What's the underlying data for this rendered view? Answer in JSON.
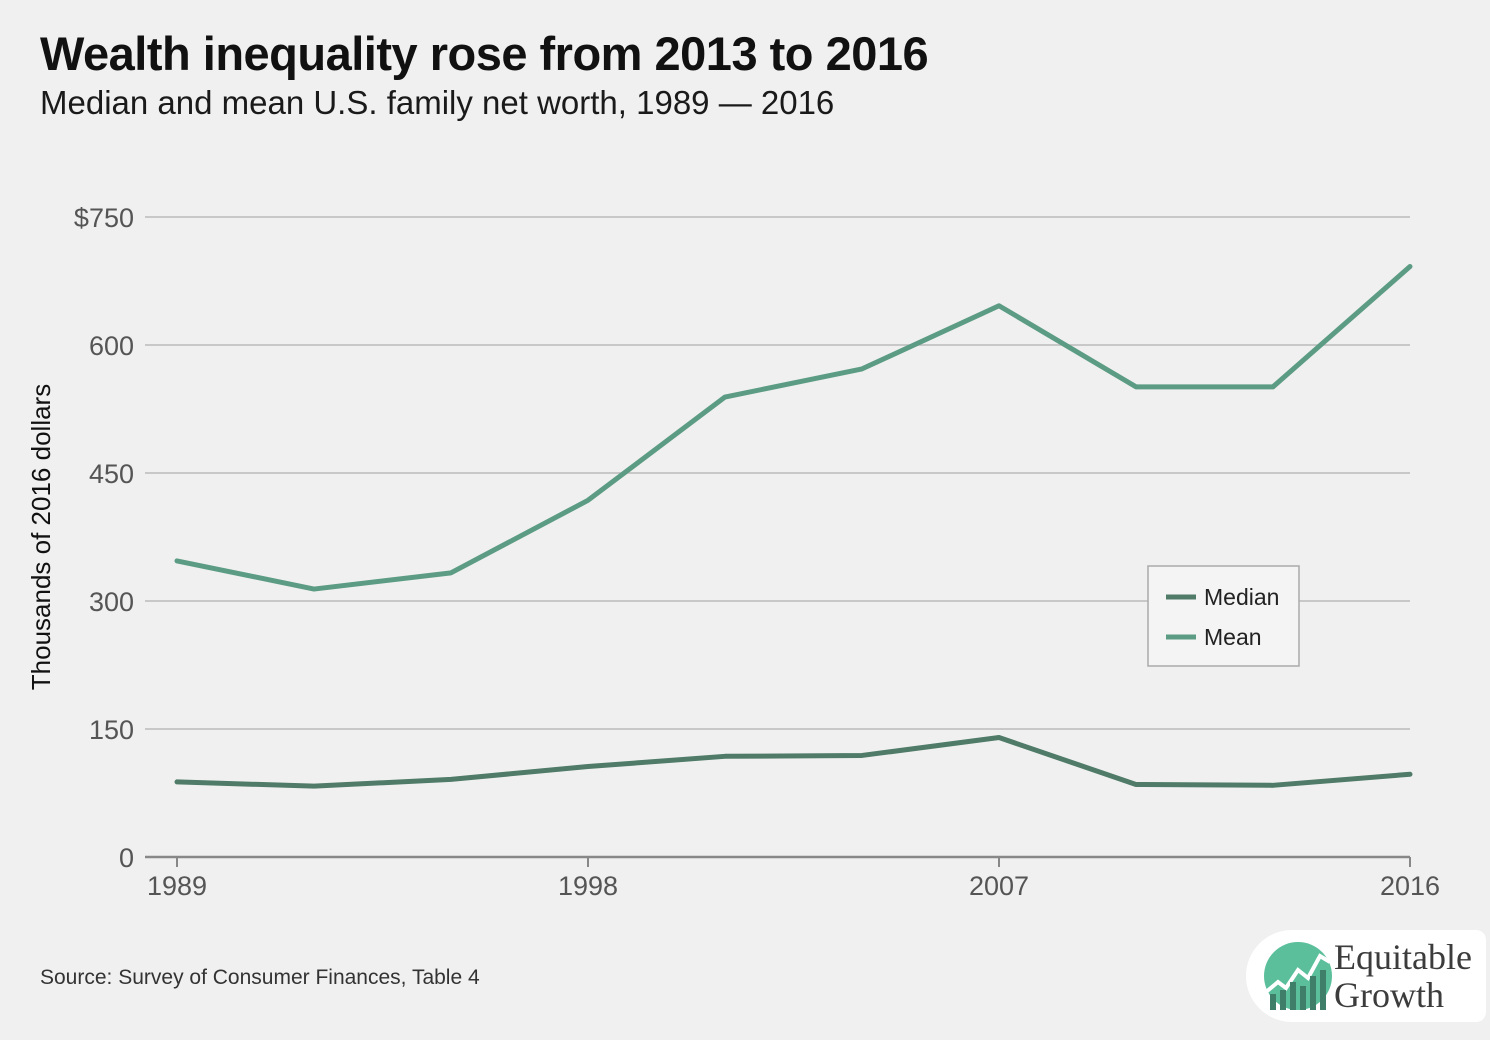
{
  "header": {
    "title": "Wealth inequality rose from 2013 to 2016",
    "subtitle": "Median and mean U.S. family net worth, 1989 — 2016"
  },
  "footer": {
    "source": "Source: Survey of Consumer Finances, Table 4"
  },
  "logo": {
    "line1": "Equitable",
    "line2": "Growth"
  },
  "colors": {
    "median": "#4f7b68",
    "mean": "#5c9c84",
    "grid": "#bbbbbb",
    "axis": "#888888",
    "logo_green": "#5bbf9c",
    "logo_dark": "#3f7f6a"
  },
  "chart_data": {
    "type": "line",
    "title": "Wealth inequality rose from 2013 to 2016",
    "subtitle": "Median and mean U.S. family net worth, 1989 — 2016",
    "xlabel": "",
    "ylabel": "Thousands of 2016 dollars",
    "x": [
      1989,
      1992,
      1995,
      1998,
      2001,
      2004,
      2007,
      2010,
      2013,
      2016
    ],
    "xticks": [
      1989,
      1998,
      2007,
      2016
    ],
    "xtick_labels": [
      "1989",
      "1998",
      "2007",
      "2016"
    ],
    "xlim": [
      1989,
      2016
    ],
    "ylim": [
      0,
      750
    ],
    "yticks": [
      0,
      150,
      300,
      450,
      600,
      750
    ],
    "ytick_labels": [
      "0",
      "150",
      "300",
      "450",
      "600",
      "$750"
    ],
    "grid": "horizontal",
    "legend_position": "right-center",
    "series": [
      {
        "name": "Median",
        "color": "#4f7b68",
        "values": [
          88,
          83,
          91,
          106,
          118,
          119,
          140,
          85,
          84,
          97
        ]
      },
      {
        "name": "Mean",
        "color": "#5c9c84",
        "values": [
          347,
          314,
          333,
          418,
          539,
          572,
          646,
          551,
          551,
          692
        ]
      }
    ]
  }
}
